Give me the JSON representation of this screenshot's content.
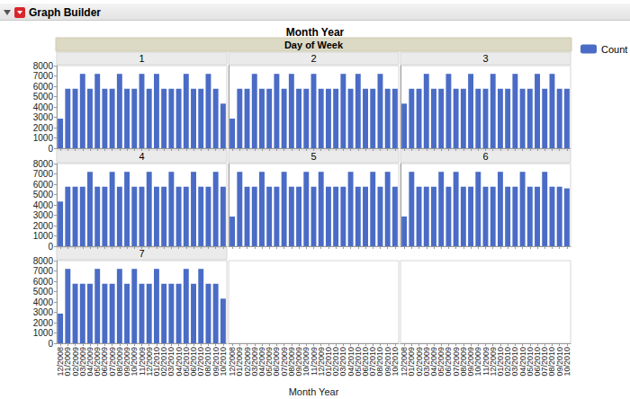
{
  "header": {
    "title": "Graph Builder"
  },
  "chart_data": {
    "type": "bar",
    "title": "Month Year",
    "facet": "Day of Week",
    "x_label": "Month Year",
    "categories": [
      "12/2008",
      "01/2009",
      "02/2009",
      "03/2009",
      "04/2009",
      "05/2009",
      "06/2009",
      "07/2009",
      "08/2009",
      "09/2009",
      "10/2009",
      "11/2009",
      "12/2009",
      "01/2010",
      "02/2010",
      "03/2010",
      "04/2010",
      "05/2010",
      "06/2010",
      "07/2010",
      "08/2010",
      "09/2010",
      "10/2010"
    ],
    "ylim": [
      0,
      8000
    ],
    "yticks": [
      0,
      1000,
      2000,
      3000,
      4000,
      5000,
      6000,
      7000,
      8000
    ],
    "grid": false,
    "legend": "right",
    "series": [
      {
        "name": "Count",
        "color": "#4a6cc6",
        "panels": [
          {
            "label": "1",
            "values": [
              2880,
              5760,
              5760,
              7200,
              5760,
              7200,
              5760,
              5760,
              7200,
              5760,
              5760,
              7200,
              5760,
              7200,
              5760,
              5760,
              5760,
              7200,
              5760,
              5760,
              7200,
              5760,
              4320
            ]
          },
          {
            "label": "2",
            "values": [
              2880,
              5760,
              5760,
              7200,
              5760,
              5760,
              7200,
              5760,
              7200,
              5760,
              5760,
              7200,
              5760,
              5760,
              5760,
              7200,
              5760,
              7200,
              5760,
              5760,
              7200,
              5760,
              5760
            ]
          },
          {
            "label": "3",
            "values": [
              4320,
              5760,
              5760,
              7200,
              5760,
              5760,
              7200,
              5760,
              5760,
              7200,
              5760,
              5760,
              7200,
              5760,
              5760,
              7200,
              5760,
              5760,
              7200,
              5760,
              7200,
              5760,
              5760
            ]
          },
          {
            "label": "4",
            "values": [
              4320,
              5760,
              5760,
              5760,
              7200,
              5760,
              5760,
              7200,
              5760,
              7200,
              5760,
              5760,
              7200,
              5760,
              5760,
              7200,
              5760,
              5760,
              7200,
              5760,
              5760,
              7200,
              5760
            ]
          },
          {
            "label": "5",
            "values": [
              2880,
              7200,
              5760,
              5760,
              7200,
              5760,
              5760,
              7200,
              5760,
              5760,
              7200,
              5760,
              7200,
              5760,
              5760,
              5760,
              7200,
              5760,
              5760,
              7200,
              5760,
              7200,
              5760
            ]
          },
          {
            "label": "6",
            "values": [
              2880,
              7200,
              5760,
              5760,
              5760,
              7200,
              5760,
              7200,
              5760,
              5760,
              7200,
              5760,
              5760,
              7200,
              5760,
              5760,
              7200,
              5760,
              5760,
              7200,
              5760,
              5760,
              5600
            ]
          },
          {
            "label": "7",
            "values": [
              2880,
              7200,
              5760,
              5760,
              5760,
              7200,
              5760,
              5760,
              7200,
              5760,
              7200,
              5760,
              5760,
              7200,
              5760,
              5760,
              5760,
              7200,
              5760,
              7200,
              5760,
              5760,
              4320
            ]
          }
        ]
      }
    ]
  }
}
